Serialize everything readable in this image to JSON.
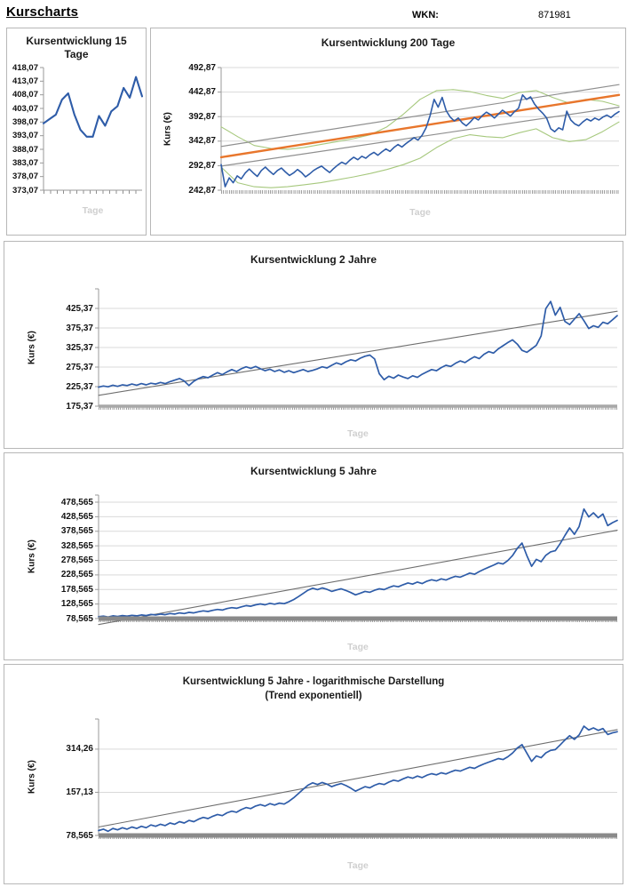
{
  "page": {
    "title": "Kurscharts",
    "wkn_label": "WKN:",
    "wkn_value": "871981"
  },
  "colors": {
    "kurs_blue": "#2e5ca8",
    "trend_orange": "#e8762c",
    "band_green": "#a6c87d",
    "channel_gray": "#8f8f8f",
    "trend_gray": "#6e6e6e",
    "grid": "#d9d9d9",
    "axis": "#9a9a9a",
    "watermark": "#cfcfcf",
    "panel_border": "#b7b7b7"
  },
  "chart_data": [
    {
      "type": "line",
      "title": "Kursentwicklung 15 Tage",
      "title_lines": [
        "Kursentwicklung 15",
        "Tage"
      ],
      "ylabel": null,
      "xlabel": "Tage",
      "scale": "linear",
      "ymin": 373.07,
      "ymax": 418.07,
      "gridlines": false,
      "bottom_axis": true,
      "top_tick": false,
      "baseline": null,
      "yticks": [
        {
          "v": 418.07,
          "label": "418,07"
        },
        {
          "v": 413.07,
          "label": "413,07"
        },
        {
          "v": 408.07,
          "label": "408,07"
        },
        {
          "v": 403.07,
          "label": "403,07"
        },
        {
          "v": 398.07,
          "label": "398,07"
        },
        {
          "v": 393.07,
          "label": "393,07"
        },
        {
          "v": 388.07,
          "label": "388,07"
        },
        {
          "v": 383.07,
          "label": "383,07"
        },
        {
          "v": 378.07,
          "label": "378,07"
        },
        {
          "v": 373.07,
          "label": "373,07"
        }
      ],
      "series": [
        {
          "name": "kurs",
          "color": "#2e5ca8",
          "width": 2.1,
          "values": [
            397.6,
            399.2,
            400.8,
            406.3,
            408.6,
            400.9,
            395.2,
            392.7,
            392.7,
            400.3,
            396.7,
            402.0,
            403.9,
            410.6,
            407.0,
            414.6,
            407.5
          ]
        }
      ]
    },
    {
      "type": "line",
      "title": "Kursentwicklung 200 Tage",
      "ylabel": "Kurs (€)",
      "xlabel": "Tage",
      "scale": "linear",
      "ymin": 242.87,
      "ymax": 492.87,
      "gridlines": true,
      "bottom_axis": false,
      "top_tick": false,
      "baseline": null,
      "yticks": [
        {
          "v": 492.87,
          "label": "492,87"
        },
        {
          "v": 442.87,
          "label": "442,87"
        },
        {
          "v": 392.87,
          "label": "392,87"
        },
        {
          "v": 342.87,
          "label": "342,87"
        },
        {
          "v": 292.87,
          "label": "292,87"
        },
        {
          "v": 242.87,
          "label": "242,87"
        }
      ],
      "series": [
        {
          "name": "band-oben",
          "color": "#a6c87d",
          "width": 1.1,
          "values": [
            372,
            352,
            334,
            328,
            326,
            330,
            336,
            342,
            348,
            356,
            372,
            398,
            428,
            446,
            448,
            444,
            436,
            430,
            442,
            446,
            432,
            420,
            428,
            424,
            415
          ]
        },
        {
          "name": "band-unten",
          "color": "#a6c87d",
          "width": 1.1,
          "values": [
            290,
            258,
            250,
            248,
            250,
            254,
            258,
            264,
            270,
            277,
            285,
            295,
            308,
            330,
            348,
            356,
            352,
            350,
            360,
            368,
            350,
            342,
            346,
            362,
            382
          ]
        },
        {
          "name": "kanal-oben",
          "color": "#8f8f8f",
          "width": 1.2,
          "values": [
            332,
            458
          ]
        },
        {
          "name": "kanal-unten",
          "color": "#8f8f8f",
          "width": 1.2,
          "values": [
            292,
            412
          ]
        },
        {
          "name": "trend",
          "color": "#e8762c",
          "width": 2.4,
          "values": [
            310,
            437
          ]
        },
        {
          "name": "kurs",
          "color": "#2e5ca8",
          "width": 1.6,
          "values": [
            295,
            250,
            268,
            258,
            272,
            266,
            278,
            286,
            278,
            271,
            283,
            290,
            282,
            275,
            283,
            288,
            280,
            273,
            278,
            285,
            279,
            270,
            276,
            283,
            288,
            292,
            285,
            279,
            287,
            294,
            300,
            296,
            304,
            310,
            305,
            312,
            308,
            315,
            320,
            314,
            321,
            327,
            322,
            330,
            336,
            331,
            338,
            344,
            350,
            345,
            355,
            370,
            395,
            428,
            412,
            432,
            405,
            392,
            384,
            390,
            380,
            374,
            382,
            391,
            386,
            395,
            402,
            397,
            390,
            398,
            406,
            400,
            394,
            403,
            410,
            437,
            428,
            433,
            418,
            408,
            400,
            390,
            368,
            362,
            370,
            366,
            404,
            386,
            378,
            374,
            382,
            388,
            384,
            390,
            386,
            392,
            396,
            391,
            398,
            403
          ]
        }
      ]
    },
    {
      "type": "line",
      "title": "Kursentwicklung 2 Jahre",
      "ylabel": "Kurs (€)",
      "xlabel": "Tage",
      "scale": "linear",
      "ymin": 175.37,
      "ymax": 475.37,
      "gridlines": true,
      "bottom_axis": false,
      "top_tick": true,
      "baseline": {
        "width": 3.5,
        "color": "#a8a8a8"
      },
      "yticks": [
        {
          "v": 425.37,
          "label": "425,37"
        },
        {
          "v": 375.37,
          "label": "375,37"
        },
        {
          "v": 325.37,
          "label": "325,37"
        },
        {
          "v": 275.37,
          "label": "275,37"
        },
        {
          "v": 225.37,
          "label": "225,37"
        },
        {
          "v": 175.37,
          "label": "175,37"
        }
      ],
      "series": [
        {
          "name": "trend",
          "color": "#6e6e6e",
          "width": 1.1,
          "values": [
            203,
            418
          ]
        },
        {
          "name": "kurs",
          "color": "#2e5ca8",
          "width": 1.7,
          "values": [
            224,
            227,
            225,
            229,
            226,
            230,
            228,
            232,
            229,
            233,
            230,
            234,
            232,
            236,
            233,
            238,
            242,
            246,
            240,
            228,
            239,
            246,
            251,
            248,
            255,
            261,
            256,
            263,
            269,
            264,
            271,
            276,
            272,
            277,
            271,
            266,
            270,
            264,
            268,
            262,
            266,
            261,
            265,
            269,
            264,
            267,
            271,
            276,
            273,
            280,
            286,
            282,
            289,
            294,
            291,
            298,
            303,
            306,
            296,
            258,
            243,
            252,
            247,
            255,
            250,
            246,
            253,
            249,
            257,
            263,
            269,
            266,
            274,
            280,
            277,
            285,
            291,
            287,
            295,
            302,
            297,
            308,
            315,
            311,
            322,
            330,
            338,
            345,
            334,
            318,
            313,
            322,
            331,
            355,
            425,
            443,
            408,
            428,
            392,
            384,
            398,
            412,
            394,
            374,
            381,
            377,
            390,
            386,
            396,
            407
          ]
        }
      ]
    },
    {
      "type": "line",
      "title": "Kursentwicklung 5 Jahre",
      "ylabel": "Kurs (€)",
      "xlabel": "Tage",
      "scale": "linear",
      "ymin": 78.565,
      "ymax": 503,
      "gridlines": true,
      "bottom_axis": false,
      "top_tick": true,
      "baseline": {
        "width": 5,
        "color": "#8a8a8a"
      },
      "yticks": [
        {
          "v": 478.565,
          "label": "478,565"
        },
        {
          "v": 428.565,
          "label": "428,565"
        },
        {
          "v": 378.565,
          "label": "378,565"
        },
        {
          "v": 328.565,
          "label": "328,565"
        },
        {
          "v": 278.565,
          "label": "278,565"
        },
        {
          "v": 228.565,
          "label": "228,565"
        },
        {
          "v": 178.565,
          "label": "178,565"
        },
        {
          "v": 128.565,
          "label": "128,565"
        },
        {
          "v": 78.565,
          "label": "78,565"
        }
      ],
      "series": [
        {
          "name": "trend",
          "color": "#6e6e6e",
          "width": 1.1,
          "values": [
            58,
            382
          ]
        },
        {
          "name": "kurs",
          "color": "#2e5ca8",
          "width": 1.7,
          "values": [
            85,
            87,
            84,
            88,
            86,
            89,
            87,
            90,
            88,
            91,
            89,
            93,
            91,
            94,
            92,
            96,
            94,
            98,
            96,
            100,
            98,
            102,
            105,
            103,
            107,
            110,
            108,
            113,
            116,
            114,
            119,
            123,
            121,
            126,
            129,
            126,
            131,
            128,
            132,
            130,
            136,
            144,
            154,
            165,
            176,
            183,
            178,
            184,
            179,
            172,
            177,
            181,
            175,
            168,
            160,
            166,
            172,
            169,
            176,
            181,
            178,
            185,
            191,
            188,
            195,
            201,
            197,
            204,
            199,
            207,
            212,
            208,
            215,
            211,
            218,
            224,
            221,
            228,
            235,
            231,
            240,
            248,
            255,
            262,
            270,
            266,
            278,
            295,
            320,
            338,
            295,
            258,
            282,
            274,
            296,
            308,
            312,
            336,
            364,
            390,
            368,
            395,
            455,
            428,
            442,
            425,
            438,
            398,
            408,
            416
          ]
        }
      ]
    },
    {
      "type": "line",
      "title": "Kursentwicklung 5 Jahre - logarithmische Darstellung (Trend exponentiell)",
      "title_lines": [
        "Kursentwicklung 5 Jahre - logarithmische Darstellung",
        "(Trend exponentiell)"
      ],
      "ylabel": "Kurs (€)",
      "xlabel": "Tage",
      "scale": "log",
      "ymin": 78.565,
      "ymax": 510,
      "gridlines": true,
      "bottom_axis": false,
      "top_tick": true,
      "baseline": {
        "width": 5,
        "color": "#8a8a8a"
      },
      "yticks": [
        {
          "v": 314.26,
          "label": "314,26"
        },
        {
          "v": 157.13,
          "label": "157,13"
        },
        {
          "v": 78.565,
          "label": "78,565"
        }
      ],
      "series": [
        {
          "name": "trend-exponentiell",
          "color": "#6e6e6e",
          "width": 1.1,
          "values": [
            90,
            430
          ]
        },
        {
          "name": "kurs",
          "color": "#2e5ca8",
          "width": 1.7,
          "values": [
            85,
            87,
            84,
            88,
            86,
            89,
            87,
            90,
            88,
            91,
            89,
            93,
            91,
            94,
            92,
            96,
            94,
            98,
            96,
            100,
            98,
            102,
            105,
            103,
            107,
            110,
            108,
            113,
            116,
            114,
            119,
            123,
            121,
            126,
            129,
            126,
            131,
            128,
            132,
            130,
            136,
            144,
            154,
            165,
            176,
            183,
            178,
            184,
            179,
            172,
            177,
            181,
            175,
            168,
            160,
            166,
            172,
            169,
            176,
            181,
            178,
            185,
            191,
            188,
            195,
            201,
            197,
            204,
            199,
            207,
            212,
            208,
            215,
            211,
            218,
            224,
            221,
            228,
            235,
            231,
            240,
            248,
            255,
            262,
            270,
            266,
            278,
            295,
            320,
            338,
            295,
            258,
            282,
            274,
            296,
            308,
            312,
            336,
            364,
            390,
            368,
            395,
            455,
            428,
            442,
            425,
            438,
            398,
            408,
            416
          ]
        }
      ]
    }
  ]
}
